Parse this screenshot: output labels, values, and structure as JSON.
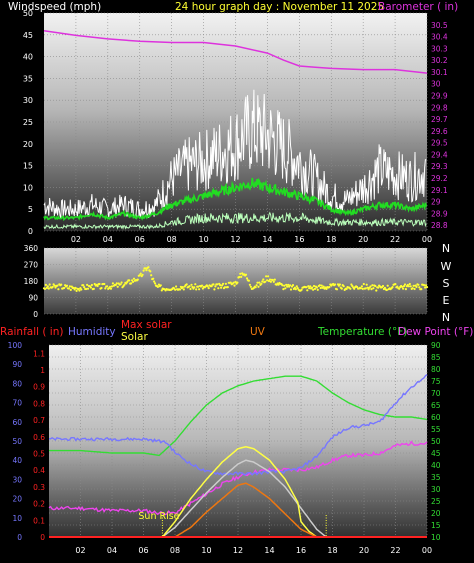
{
  "colors": {
    "wind": "#ffffff",
    "wind_avg": "#22dd22",
    "wind_low": "#bbffbb",
    "barometer": "#dd33dd",
    "direction": "#ffff33",
    "rain": "#ff2222",
    "humidity": "#7777ff",
    "solar": "#ffff44",
    "max_solar": "#cccccc",
    "uv": "#ee7711",
    "temperature": "#33dd33",
    "dew_point": "#ee44ee",
    "axis_text": "#ffffff"
  },
  "chart_data": [
    {
      "type": "line",
      "title": "24 hour graph day : November 11 2025",
      "left_label": "Windspeed (mph)",
      "right_label": "Barometer ( in)",
      "x_ticks": [
        "02",
        "04",
        "06",
        "08",
        "10",
        "12",
        "14",
        "16",
        "18",
        "20",
        "22",
        "00"
      ],
      "y_left_ticks": [
        "50",
        "45",
        "40",
        "35",
        "30",
        "25",
        "20",
        "15",
        "10",
        "5",
        "0"
      ],
      "y_left_range": [
        0,
        50
      ],
      "y_right_ticks": [
        "30.5",
        "30.4",
        "30.3",
        "30.2",
        "30.1",
        "30",
        "29.9",
        "29.8",
        "29.7",
        "29.6",
        "29.5",
        "29.4",
        "29.3",
        "29.2",
        "29.1",
        "29",
        "28.9",
        "28.8"
      ],
      "y_right_range": [
        28.75,
        30.6
      ],
      "x_range": [
        0,
        24
      ],
      "series": [
        {
          "key": "wind_gust",
          "x": [
            0,
            1,
            2,
            3,
            4,
            5,
            6,
            7,
            7.5,
            8,
            9,
            10,
            11,
            12,
            13,
            14,
            15,
            16,
            17,
            18,
            19,
            20,
            21,
            22,
            23,
            24
          ],
          "y": [
            6,
            5,
            5,
            6,
            5,
            6,
            5,
            6,
            9,
            12,
            15,
            16,
            18,
            20,
            23,
            22,
            19,
            16,
            12,
            8,
            7,
            10,
            14,
            13,
            12,
            14
          ]
        },
        {
          "key": "wind_avg",
          "x": [
            0,
            1,
            2,
            3,
            4,
            5,
            6,
            7,
            7.5,
            8,
            9,
            10,
            11,
            12,
            13,
            14,
            15,
            16,
            17,
            18,
            19,
            20,
            21,
            22,
            23,
            24
          ],
          "y": [
            3,
            3,
            3,
            4,
            3,
            4,
            3,
            4,
            5,
            6,
            7,
            8,
            9,
            10,
            11,
            10,
            9,
            8,
            7,
            5,
            4,
            5,
            6,
            6,
            5,
            6
          ]
        },
        {
          "key": "wind_low",
          "x": [
            0,
            2,
            4,
            6,
            7,
            8,
            10,
            12,
            14,
            16,
            18,
            20,
            22,
            24
          ],
          "y": [
            1,
            1,
            1,
            1,
            1,
            2,
            3,
            3,
            3,
            3,
            2,
            2,
            2,
            2
          ]
        },
        {
          "key": "barometer",
          "x": [
            0,
            2,
            4,
            6,
            8,
            10,
            12,
            14,
            15,
            16,
            17,
            18,
            20,
            22,
            24
          ],
          "y": [
            30.45,
            30.41,
            30.38,
            30.36,
            30.35,
            30.35,
            30.32,
            30.26,
            30.2,
            30.15,
            30.14,
            30.13,
            30.12,
            30.12,
            30.09
          ]
        }
      ]
    },
    {
      "type": "scatter",
      "title": "",
      "left_ticks": [
        "360",
        "270",
        "180",
        "90",
        "0"
      ],
      "y_range": [
        0,
        360
      ],
      "compass": [
        "N",
        "W",
        "S",
        "E",
        "N"
      ],
      "x_range": [
        0,
        24
      ],
      "series": [
        {
          "key": "wind_direction",
          "x": [
            0,
            1,
            2,
            3,
            4,
            5,
            6,
            6.5,
            7,
            7.5,
            8,
            9,
            10,
            11,
            12,
            12.5,
            13,
            13.5,
            14,
            15,
            16,
            17,
            18,
            19,
            20,
            21,
            22,
            23,
            24
          ],
          "y": [
            145,
            150,
            140,
            150,
            150,
            160,
            200,
            260,
            150,
            140,
            145,
            150,
            145,
            150,
            170,
            230,
            150,
            160,
            200,
            150,
            140,
            145,
            150,
            145,
            150,
            140,
            150,
            150,
            150
          ]
        }
      ]
    },
    {
      "type": "line",
      "title": "",
      "legend": [
        "Rainfall ( in)",
        "Humidity",
        "Max solar",
        "Solar",
        "UV",
        "Temperature (°F)",
        "Dew Point (°F)"
      ],
      "left_outer_ticks": [
        "100",
        "90",
        "80",
        "70",
        "60",
        "50",
        "40",
        "30",
        "20",
        "10",
        "0"
      ],
      "left_inner_ticks": [
        "1.1",
        "1",
        "0.9",
        "0.8",
        "0.7",
        "0.6",
        "0.5",
        "0.4",
        "0.3",
        "0.2",
        "0.1",
        "0"
      ],
      "right_ticks": [
        "90",
        "85",
        "80",
        "75",
        "70",
        "65",
        "60",
        "55",
        "50",
        "45",
        "40",
        "35",
        "30",
        "25",
        "20",
        "15",
        "10"
      ],
      "right_range": [
        10,
        90
      ],
      "x_range": [
        0,
        24
      ],
      "annotation": "Sun Rise",
      "sunrise": 7.2,
      "sunset": 17.6,
      "series": [
        {
          "key": "temperature",
          "x": [
            0,
            2,
            4,
            6,
            7,
            8,
            9,
            10,
            11,
            12,
            13,
            14,
            15,
            16,
            17,
            18,
            19,
            20,
            21,
            22,
            23,
            24
          ],
          "y": [
            46,
            46,
            45,
            45,
            44,
            50,
            58,
            65,
            70,
            73,
            75,
            76,
            77,
            77,
            75,
            70,
            66,
            63,
            61,
            60,
            60,
            59
          ]
        },
        {
          "key": "dew_point",
          "x": [
            0,
            2,
            4,
            6,
            7,
            8,
            9,
            10,
            11,
            12,
            13,
            14,
            15,
            16,
            17,
            18,
            19,
            20,
            21,
            22,
            23,
            24
          ],
          "y": [
            22,
            22,
            21,
            21,
            20,
            20,
            24,
            28,
            32,
            35,
            37,
            38,
            38,
            38,
            39,
            42,
            44,
            44,
            45,
            48,
            49,
            49
          ]
        },
        {
          "key": "humidity",
          "x": [
            0,
            2,
            4,
            6,
            7,
            7.5,
            8,
            9,
            10,
            11,
            12,
            13,
            14,
            15,
            16,
            17,
            18,
            19,
            20,
            21,
            22,
            23,
            24
          ],
          "y": [
            51,
            51,
            51,
            51,
            50,
            49,
            44,
            38,
            34,
            33,
            33,
            33,
            34,
            34,
            36,
            42,
            52,
            57,
            58,
            60,
            70,
            78,
            84
          ]
        },
        {
          "key": "max_solar",
          "x": [
            7.2,
            8,
            9,
            10,
            11,
            12,
            12.5,
            13,
            14,
            15,
            16,
            17,
            17.6
          ],
          "y": [
            0,
            5,
            14,
            23,
            31,
            38,
            40,
            39,
            34,
            26,
            15,
            4,
            0
          ]
        },
        {
          "key": "solar",
          "x": [
            7.2,
            8,
            9,
            10,
            11,
            12,
            12.5,
            13,
            14,
            15,
            15.8,
            16,
            16.5,
            17
          ],
          "y": [
            0,
            8,
            20,
            30,
            39,
            46,
            47,
            46,
            40,
            30,
            18,
            8,
            3,
            0
          ]
        },
        {
          "key": "uv",
          "x": [
            8,
            9,
            10,
            11,
            12,
            12.5,
            13,
            14,
            15,
            16,
            17
          ],
          "y": [
            0,
            5,
            13,
            20,
            27,
            28,
            26,
            20,
            12,
            4,
            0
          ]
        },
        {
          "key": "rain",
          "x": [
            0,
            24
          ],
          "y": [
            0,
            0
          ]
        }
      ]
    }
  ]
}
